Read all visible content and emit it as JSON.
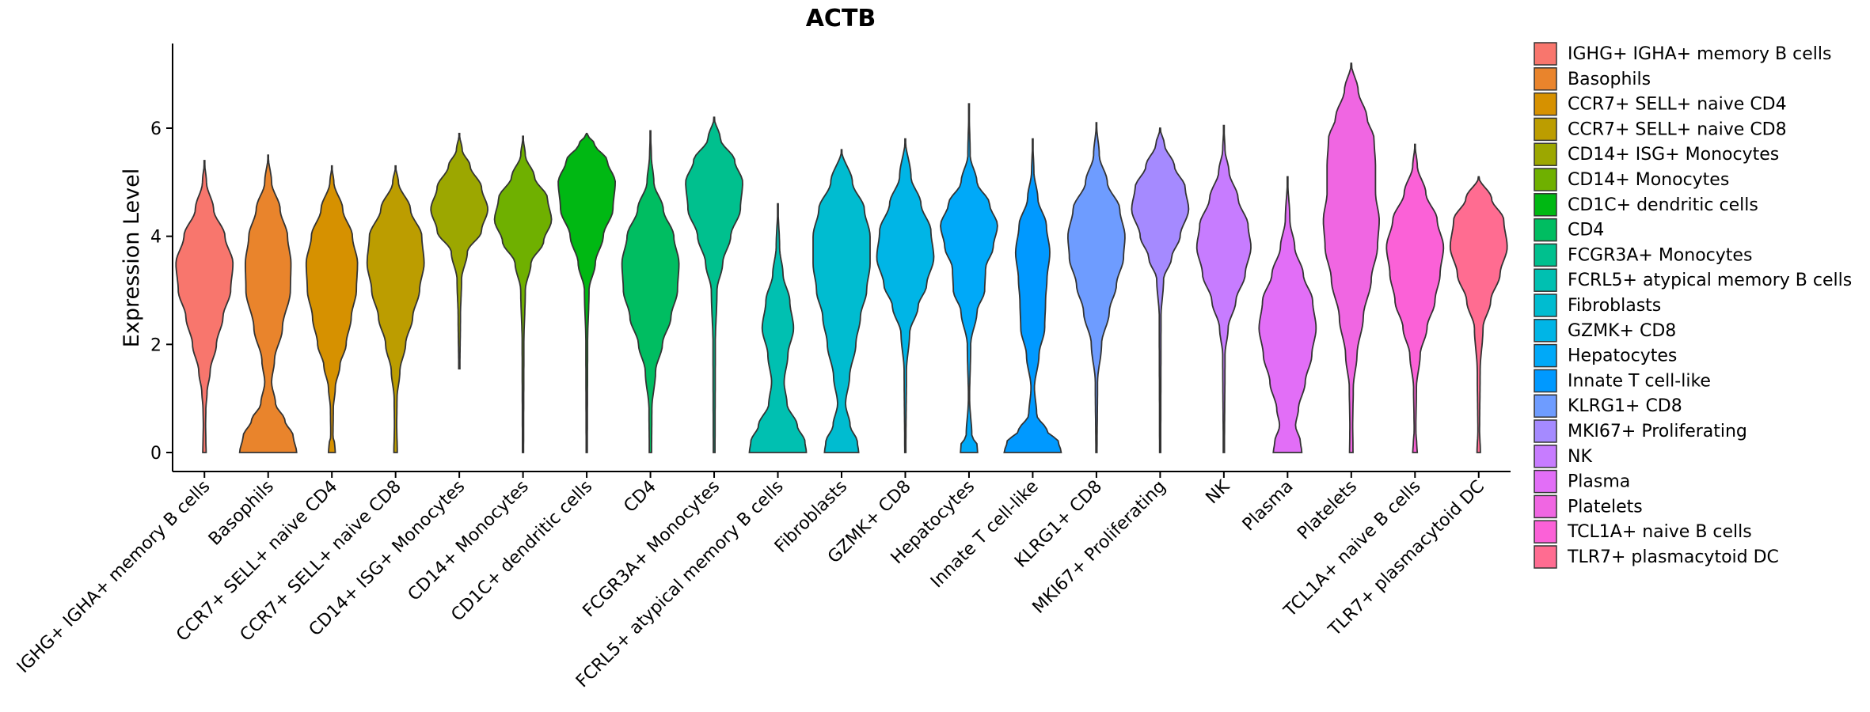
{
  "chart_data": {
    "type": "violin",
    "title": "ACTB",
    "xlabel": "",
    "ylabel": "Expression Level",
    "ylim": [
      -0.35,
      7.6
    ],
    "yticks": [
      0,
      2,
      4,
      6
    ],
    "grid": false,
    "legend_position": "right",
    "categories": [
      {
        "name": " IGHG+ IGHA+ memory B cells",
        "label": "IGHG+ IGHA+ memory B cells",
        "color": "#F8766D",
        "max": 5.4,
        "min": 0.0,
        "width": 1.0,
        "profile": [
          [
            0,
            0.06
          ],
          [
            0.2,
            0.05
          ],
          [
            0.5,
            0.04
          ],
          [
            0.8,
            0.05
          ],
          [
            1.1,
            0.09
          ],
          [
            1.5,
            0.2
          ],
          [
            2.0,
            0.42
          ],
          [
            2.5,
            0.65
          ],
          [
            3.0,
            0.92
          ],
          [
            3.5,
            1.0
          ],
          [
            4.0,
            0.72
          ],
          [
            4.5,
            0.32
          ],
          [
            5.0,
            0.07
          ],
          [
            5.4,
            0.0
          ]
        ]
      },
      {
        "name": "Basophils",
        "label": "Basophils",
        "color": "#E9842C",
        "max": 5.5,
        "min": 0.0,
        "width": 1.0,
        "profile": [
          [
            0,
            1.0
          ],
          [
            0.3,
            0.88
          ],
          [
            0.6,
            0.58
          ],
          [
            0.9,
            0.26
          ],
          [
            1.3,
            0.12
          ],
          [
            1.7,
            0.22
          ],
          [
            2.3,
            0.5
          ],
          [
            3.0,
            0.78
          ],
          [
            3.5,
            0.8
          ],
          [
            4.0,
            0.68
          ],
          [
            4.5,
            0.42
          ],
          [
            5.0,
            0.12
          ],
          [
            5.5,
            0.0
          ]
        ]
      },
      {
        "name": "CCR7+ SELL+ naive CD4",
        "label": "CCR7+ SELL+ naive CD4",
        "color": "#D69100",
        "max": 5.3,
        "min": 0.0,
        "width": 1.0,
        "profile": [
          [
            0,
            0.12
          ],
          [
            0.15,
            0.1
          ],
          [
            0.3,
            0.04
          ],
          [
            0.8,
            0.05
          ],
          [
            1.2,
            0.12
          ],
          [
            1.6,
            0.28
          ],
          [
            2.0,
            0.5
          ],
          [
            2.5,
            0.68
          ],
          [
            3.0,
            0.86
          ],
          [
            3.5,
            0.9
          ],
          [
            4.0,
            0.72
          ],
          [
            4.5,
            0.38
          ],
          [
            5.0,
            0.07
          ],
          [
            5.3,
            0.0
          ]
        ]
      },
      {
        "name": "CCR7+ SELL+ naive CD8",
        "label": "CCR7+ SELL+ naive CD8",
        "color": "#BC9D00",
        "max": 5.3,
        "min": 0.0,
        "width": 1.0,
        "profile": [
          [
            0,
            0.06
          ],
          [
            0.5,
            0.04
          ],
          [
            1.0,
            0.05
          ],
          [
            1.5,
            0.15
          ],
          [
            2.0,
            0.35
          ],
          [
            2.5,
            0.6
          ],
          [
            3.0,
            0.84
          ],
          [
            3.5,
            1.0
          ],
          [
            4.0,
            0.92
          ],
          [
            4.5,
            0.52
          ],
          [
            5.0,
            0.1
          ],
          [
            5.3,
            0.0
          ]
        ]
      },
      {
        "name": "CD14+ ISG+ Monocytes",
        "label": "CD14+ ISG+ Monocytes",
        "color": "#9CA700",
        "max": 5.9,
        "min": 1.55,
        "width": 1.0,
        "profile": [
          [
            1.55,
            0.02
          ],
          [
            2.5,
            0.04
          ],
          [
            3.2,
            0.08
          ],
          [
            3.7,
            0.28
          ],
          [
            4.1,
            0.78
          ],
          [
            4.5,
            1.0
          ],
          [
            4.9,
            0.78
          ],
          [
            5.3,
            0.38
          ],
          [
            5.6,
            0.1
          ],
          [
            5.9,
            0.0
          ]
        ]
      },
      {
        "name": "CD14+ Monocytes",
        "label": "CD14+ Monocytes",
        "color": "#6FB000",
        "max": 5.85,
        "min": 0.0,
        "width": 1.0,
        "profile": [
          [
            0,
            0.02
          ],
          [
            2.0,
            0.03
          ],
          [
            3.0,
            0.08
          ],
          [
            3.5,
            0.28
          ],
          [
            3.9,
            0.72
          ],
          [
            4.3,
            1.0
          ],
          [
            4.7,
            0.86
          ],
          [
            5.1,
            0.4
          ],
          [
            5.5,
            0.08
          ],
          [
            5.85,
            0.0
          ]
        ]
      },
      {
        "name": "CD1C+ dendritic cells",
        "label": "CD1C+ dendritic cells",
        "color": "#00B813",
        "max": 5.9,
        "min": 0.0,
        "width": 1.0,
        "profile": [
          [
            0,
            0.02
          ],
          [
            2.0,
            0.03
          ],
          [
            3.0,
            0.08
          ],
          [
            3.5,
            0.3
          ],
          [
            4.0,
            0.58
          ],
          [
            4.5,
            0.92
          ],
          [
            5.0,
            1.0
          ],
          [
            5.4,
            0.72
          ],
          [
            5.7,
            0.28
          ],
          [
            5.9,
            0.0
          ]
        ]
      },
      {
        "name": "CD4",
        "label": "CD4",
        "color": "#00BD61",
        "max": 5.95,
        "min": 0.0,
        "width": 1.0,
        "profile": [
          [
            0,
            0.04
          ],
          [
            0.8,
            0.05
          ],
          [
            1.5,
            0.18
          ],
          [
            2.0,
            0.42
          ],
          [
            2.5,
            0.72
          ],
          [
            3.0,
            0.95
          ],
          [
            3.5,
            1.0
          ],
          [
            4.0,
            0.82
          ],
          [
            4.5,
            0.45
          ],
          [
            5.0,
            0.12
          ],
          [
            5.5,
            0.03
          ],
          [
            5.95,
            0.0
          ]
        ]
      },
      {
        "name": "FCGR3A+ Monocytes",
        "label": "FCGR3A+ Monocytes",
        "color": "#00C08E",
        "max": 6.2,
        "min": 0.0,
        "width": 1.0,
        "profile": [
          [
            0,
            0.03
          ],
          [
            2.0,
            0.04
          ],
          [
            3.0,
            0.1
          ],
          [
            3.5,
            0.3
          ],
          [
            4.0,
            0.58
          ],
          [
            4.5,
            0.92
          ],
          [
            5.0,
            1.0
          ],
          [
            5.4,
            0.72
          ],
          [
            5.8,
            0.22
          ],
          [
            6.2,
            0.0
          ]
        ]
      },
      {
        "name": "FCRL5+ atypical memory B cells",
        "label": "FCRL5+ atypical memory B cells",
        "color": "#00C0B1",
        "max": 4.6,
        "min": 0.0,
        "width": 1.0,
        "profile": [
          [
            0,
            1.0
          ],
          [
            0.2,
            0.95
          ],
          [
            0.5,
            0.68
          ],
          [
            0.9,
            0.32
          ],
          [
            1.3,
            0.22
          ],
          [
            1.8,
            0.35
          ],
          [
            2.3,
            0.55
          ],
          [
            2.8,
            0.42
          ],
          [
            3.3,
            0.18
          ],
          [
            3.8,
            0.06
          ],
          [
            4.6,
            0.0
          ]
        ]
      },
      {
        "name": "Fibroblasts",
        "label": "Fibroblasts",
        "color": "#00BCD0",
        "max": 5.6,
        "min": 0.0,
        "width": 1.0,
        "profile": [
          [
            0,
            0.6
          ],
          [
            0.2,
            0.55
          ],
          [
            0.5,
            0.3
          ],
          [
            0.9,
            0.14
          ],
          [
            1.4,
            0.28
          ],
          [
            2.0,
            0.5
          ],
          [
            2.5,
            0.66
          ],
          [
            3.0,
            0.88
          ],
          [
            3.5,
            1.0
          ],
          [
            4.0,
            1.0
          ],
          [
            4.5,
            0.8
          ],
          [
            5.0,
            0.38
          ],
          [
            5.6,
            0.0
          ]
        ]
      },
      {
        "name": "GZMK+ CD8",
        "label": "GZMK+ CD8",
        "color": "#00B5E6",
        "max": 5.8,
        "min": 0.0,
        "width": 1.0,
        "profile": [
          [
            0,
            0.02
          ],
          [
            1.5,
            0.04
          ],
          [
            2.2,
            0.15
          ],
          [
            2.7,
            0.45
          ],
          [
            3.1,
            0.75
          ],
          [
            3.6,
            1.0
          ],
          [
            4.1,
            0.9
          ],
          [
            4.6,
            0.55
          ],
          [
            5.1,
            0.2
          ],
          [
            5.8,
            0.0
          ]
        ]
      },
      {
        "name": "Hepatocytes",
        "label": "Hepatocytes",
        "color": "#00A9F8",
        "max": 6.45,
        "min": 0.0,
        "width": 1.0,
        "profile": [
          [
            0,
            0.3
          ],
          [
            0.15,
            0.28
          ],
          [
            0.3,
            0.1
          ],
          [
            1.0,
            0.02
          ],
          [
            2.0,
            0.06
          ],
          [
            2.6,
            0.28
          ],
          [
            3.0,
            0.55
          ],
          [
            3.4,
            0.58
          ],
          [
            3.8,
            0.85
          ],
          [
            4.2,
            1.0
          ],
          [
            4.6,
            0.72
          ],
          [
            5.0,
            0.28
          ],
          [
            5.5,
            0.04
          ],
          [
            6.45,
            0.0
          ]
        ]
      },
      {
        "name": "Innate T cell-like",
        "label": "Innate T cell-like",
        "color": "#0099FF",
        "max": 5.8,
        "min": 0.0,
        "width": 1.0,
        "profile": [
          [
            0,
            1.0
          ],
          [
            0.2,
            0.9
          ],
          [
            0.4,
            0.5
          ],
          [
            0.7,
            0.14
          ],
          [
            1.2,
            0.06
          ],
          [
            1.8,
            0.22
          ],
          [
            2.3,
            0.42
          ],
          [
            2.8,
            0.45
          ],
          [
            3.2,
            0.5
          ],
          [
            3.7,
            0.6
          ],
          [
            4.2,
            0.48
          ],
          [
            4.7,
            0.18
          ],
          [
            5.2,
            0.04
          ],
          [
            5.8,
            0.0
          ]
        ]
      },
      {
        "name": "KLRG1+ CD8",
        "label": "KLRG1+ CD8",
        "color": "#6E9CFF",
        "max": 6.1,
        "min": 0.0,
        "width": 1.0,
        "profile": [
          [
            0,
            0.02
          ],
          [
            1.3,
            0.04
          ],
          [
            2.0,
            0.18
          ],
          [
            2.6,
            0.45
          ],
          [
            3.1,
            0.7
          ],
          [
            3.6,
            0.95
          ],
          [
            4.0,
            1.0
          ],
          [
            4.5,
            0.82
          ],
          [
            5.0,
            0.38
          ],
          [
            5.5,
            0.1
          ],
          [
            6.1,
            0.0
          ]
        ]
      },
      {
        "name": "MKI67+ Proliferating",
        "label": "MKI67+ Proliferating",
        "color": "#A58AFF",
        "max": 6.0,
        "min": 0.0,
        "width": 1.0,
        "profile": [
          [
            0,
            0.02
          ],
          [
            2.5,
            0.03
          ],
          [
            3.2,
            0.12
          ],
          [
            3.6,
            0.4
          ],
          [
            4.0,
            0.7
          ],
          [
            4.5,
            1.0
          ],
          [
            4.9,
            0.88
          ],
          [
            5.3,
            0.5
          ],
          [
            5.7,
            0.15
          ],
          [
            6.0,
            0.0
          ]
        ]
      },
      {
        "name": "NK",
        "label": "NK",
        "color": "#C77CFF",
        "max": 6.05,
        "min": 0.0,
        "width": 1.0,
        "profile": [
          [
            0,
            0.02
          ],
          [
            1.8,
            0.04
          ],
          [
            2.3,
            0.15
          ],
          [
            2.8,
            0.42
          ],
          [
            3.3,
            0.75
          ],
          [
            3.8,
            0.95
          ],
          [
            4.2,
            0.85
          ],
          [
            4.7,
            0.5
          ],
          [
            5.2,
            0.18
          ],
          [
            5.6,
            0.04
          ],
          [
            6.05,
            0.0
          ]
        ]
      },
      {
        "name": "Plasma",
        "label": "Plasma",
        "color": "#E26EF7",
        "max": 5.1,
        "min": 0.0,
        "width": 1.0,
        "profile": [
          [
            0,
            0.5
          ],
          [
            0.2,
            0.45
          ],
          [
            0.5,
            0.28
          ],
          [
            0.8,
            0.38
          ],
          [
            1.3,
            0.62
          ],
          [
            1.8,
            0.85
          ],
          [
            2.3,
            1.0
          ],
          [
            2.8,
            0.88
          ],
          [
            3.3,
            0.55
          ],
          [
            3.8,
            0.25
          ],
          [
            4.3,
            0.08
          ],
          [
            5.1,
            0.0
          ]
        ]
      },
      {
        "name": "Platelets",
        "label": "Platelets",
        "color": "#F066E2",
        "max": 7.2,
        "min": 0.0,
        "width": 1.0,
        "profile": [
          [
            0,
            0.06
          ],
          [
            0.5,
            0.05
          ],
          [
            1.2,
            0.07
          ],
          [
            1.8,
            0.2
          ],
          [
            2.5,
            0.42
          ],
          [
            3.2,
            0.7
          ],
          [
            3.8,
            0.92
          ],
          [
            4.3,
            0.98
          ],
          [
            4.8,
            0.85
          ],
          [
            5.3,
            0.85
          ],
          [
            5.8,
            0.8
          ],
          [
            6.2,
            0.55
          ],
          [
            6.7,
            0.24
          ],
          [
            7.2,
            0.0
          ]
        ]
      },
      {
        "name": "TCL1A+ naive B cells",
        "label": "TCL1A+ naive B cells",
        "color": "#FB61D7",
        "max": 5.7,
        "min": 0.0,
        "width": 1.0,
        "profile": [
          [
            0,
            0.08
          ],
          [
            0.15,
            0.06
          ],
          [
            0.4,
            0.03
          ],
          [
            1.2,
            0.05
          ],
          [
            1.8,
            0.18
          ],
          [
            2.3,
            0.42
          ],
          [
            2.8,
            0.7
          ],
          [
            3.3,
            0.88
          ],
          [
            3.8,
            1.0
          ],
          [
            4.3,
            0.78
          ],
          [
            4.8,
            0.38
          ],
          [
            5.3,
            0.08
          ],
          [
            5.7,
            0.0
          ]
        ]
      },
      {
        "name": "TLR7+ plasmacytoid DC",
        "label": "TLR7+ plasmacytoid DC",
        "color": "#FF6C91",
        "max": 5.1,
        "min": 0.0,
        "width": 1.0,
        "profile": [
          [
            0,
            0.06
          ],
          [
            0.4,
            0.03
          ],
          [
            1.5,
            0.05
          ],
          [
            2.3,
            0.15
          ],
          [
            2.8,
            0.42
          ],
          [
            3.3,
            0.75
          ],
          [
            3.8,
            1.0
          ],
          [
            4.3,
            0.88
          ],
          [
            4.7,
            0.45
          ],
          [
            5.1,
            0.0
          ]
        ]
      }
    ]
  }
}
